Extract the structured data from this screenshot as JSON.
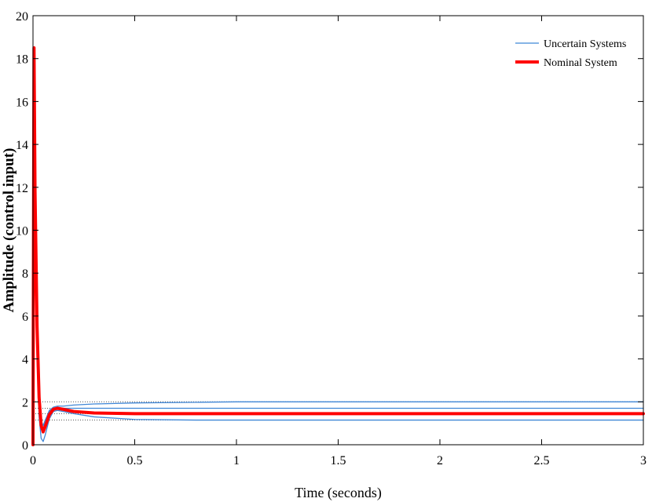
{
  "chart_data": {
    "type": "line",
    "title": "",
    "xlabel": "Time (seconds)",
    "ylabel": "Amplitude (control input)",
    "xlim": [
      0,
      3
    ],
    "ylim": [
      0,
      20
    ],
    "xticks": [
      "0",
      "0.5",
      "1",
      "1.5",
      "2",
      "2.5",
      "3"
    ],
    "yticks": [
      "0",
      "2",
      "4",
      "6",
      "8",
      "10",
      "12",
      "14",
      "16",
      "18",
      "20"
    ],
    "grid": false,
    "legend_position": "top-right",
    "legend": [
      {
        "label": "Uncertain Systems",
        "color": "#3f86d6"
      },
      {
        "label": "Nominal System",
        "color": "#ff0000"
      }
    ],
    "reference_levels": [
      2.0,
      1.7,
      1.45,
      1.15
    ],
    "series": [
      {
        "name": "Uncertain Systems",
        "color": "#3f86d6",
        "x": [
          0,
          0.005,
          0.01,
          0.02,
          0.03,
          0.04,
          0.05,
          0.06,
          0.08,
          0.1,
          0.12,
          0.15,
          0.2,
          0.3,
          0.5,
          0.8,
          1.0,
          1.5,
          2.0,
          3.0
        ],
        "y": [
          0,
          14.5,
          9.0,
          4.0,
          1.3,
          0.3,
          0.15,
          0.45,
          1.2,
          1.55,
          1.6,
          1.55,
          1.45,
          1.3,
          1.18,
          1.15,
          1.15,
          1.15,
          1.15,
          1.15
        ]
      },
      {
        "name": "Uncertain Systems",
        "color": "#3f86d6",
        "x": [
          0,
          0.005,
          0.01,
          0.02,
          0.03,
          0.04,
          0.05,
          0.06,
          0.08,
          0.1,
          0.12,
          0.15,
          0.2,
          0.3,
          0.5,
          0.8,
          1.0,
          1.5,
          2.0,
          3.0
        ],
        "y": [
          0,
          16.5,
          10.5,
          4.8,
          2.0,
          0.9,
          0.75,
          1.1,
          1.6,
          1.75,
          1.8,
          1.8,
          1.85,
          1.9,
          1.95,
          1.98,
          2.0,
          2.0,
          2.0,
          2.0
        ]
      },
      {
        "name": "Uncertain Systems",
        "color": "#3f86d6",
        "x": [
          0,
          0.005,
          0.01,
          0.02,
          0.03,
          0.04,
          0.05,
          0.06,
          0.08,
          0.1,
          0.12,
          0.15,
          0.2,
          0.3,
          0.5,
          0.8,
          1.0,
          1.5,
          2.0,
          3.0
        ],
        "y": [
          0,
          17.5,
          11.0,
          5.2,
          2.2,
          1.1,
          0.9,
          1.15,
          1.55,
          1.7,
          1.72,
          1.7,
          1.7,
          1.7,
          1.7,
          1.7,
          1.7,
          1.7,
          1.7,
          1.7
        ]
      },
      {
        "name": "Nominal System",
        "color": "#ff0000",
        "x": [
          0,
          0.005,
          0.01,
          0.02,
          0.03,
          0.04,
          0.05,
          0.06,
          0.08,
          0.1,
          0.12,
          0.15,
          0.2,
          0.3,
          0.5,
          0.8,
          1.0,
          1.5,
          2.0,
          3.0
        ],
        "y": [
          0,
          18.5,
          11.8,
          5.5,
          2.2,
          0.9,
          0.6,
          0.85,
          1.4,
          1.65,
          1.7,
          1.65,
          1.55,
          1.48,
          1.45,
          1.45,
          1.45,
          1.45,
          1.45,
          1.45
        ]
      }
    ]
  }
}
